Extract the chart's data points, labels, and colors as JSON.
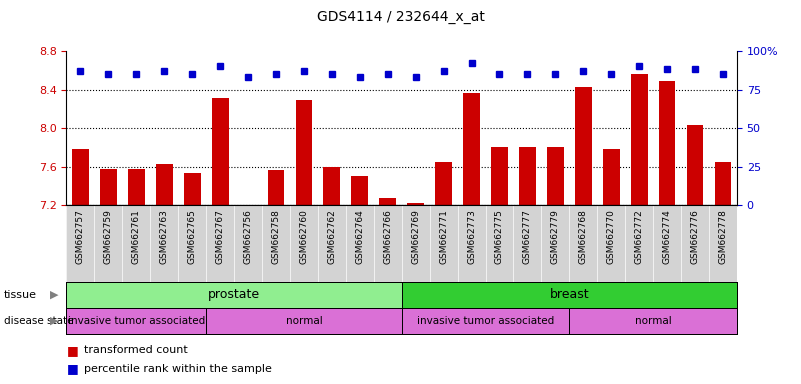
{
  "title": "GDS4114 / 232644_x_at",
  "samples": [
    "GSM662757",
    "GSM662759",
    "GSM662761",
    "GSM662763",
    "GSM662765",
    "GSM662767",
    "GSM662756",
    "GSM662758",
    "GSM662760",
    "GSM662762",
    "GSM662764",
    "GSM662766",
    "GSM662769",
    "GSM662771",
    "GSM662773",
    "GSM662775",
    "GSM662777",
    "GSM662779",
    "GSM662768",
    "GSM662770",
    "GSM662772",
    "GSM662774",
    "GSM662776",
    "GSM662778"
  ],
  "bar_values": [
    7.78,
    7.58,
    7.58,
    7.63,
    7.53,
    8.32,
    7.2,
    7.56,
    8.29,
    7.6,
    7.5,
    7.27,
    7.22,
    7.65,
    8.37,
    7.8,
    7.8,
    7.8,
    8.43,
    7.78,
    8.57,
    8.49,
    8.03,
    7.65
  ],
  "percentile_values_left": [
    8.6,
    8.57,
    8.57,
    8.6,
    8.57,
    8.65,
    8.53,
    8.57,
    8.6,
    8.57,
    8.53,
    8.57,
    8.53,
    8.6,
    8.68,
    8.57,
    8.57,
    8.57,
    8.6,
    8.57,
    8.65,
    8.62,
    8.62,
    8.57
  ],
  "bar_color": "#cc0000",
  "percentile_color": "#0000cc",
  "ylim_left": [
    7.2,
    8.8
  ],
  "ylim_right": [
    0,
    100
  ],
  "yticks_left": [
    7.2,
    7.6,
    8.0,
    8.4,
    8.8
  ],
  "yticks_right": [
    0,
    25,
    50,
    75,
    100
  ],
  "tissue_prostate_color": "#90EE90",
  "tissue_breast_color": "#32CD32",
  "disease_color": "#DA70D6",
  "tissue_groups": [
    {
      "label": "prostate",
      "start": 0,
      "end": 11
    },
    {
      "label": "breast",
      "start": 12,
      "end": 23
    }
  ],
  "disease_groups": [
    {
      "label": "invasive tumor associated",
      "start": 0,
      "end": 4
    },
    {
      "label": "normal",
      "start": 5,
      "end": 11
    },
    {
      "label": "invasive tumor associated",
      "start": 12,
      "end": 17
    },
    {
      "label": "normal",
      "start": 18,
      "end": 23
    }
  ],
  "background_color": "#ffffff",
  "xtick_bg": "#d3d3d3"
}
